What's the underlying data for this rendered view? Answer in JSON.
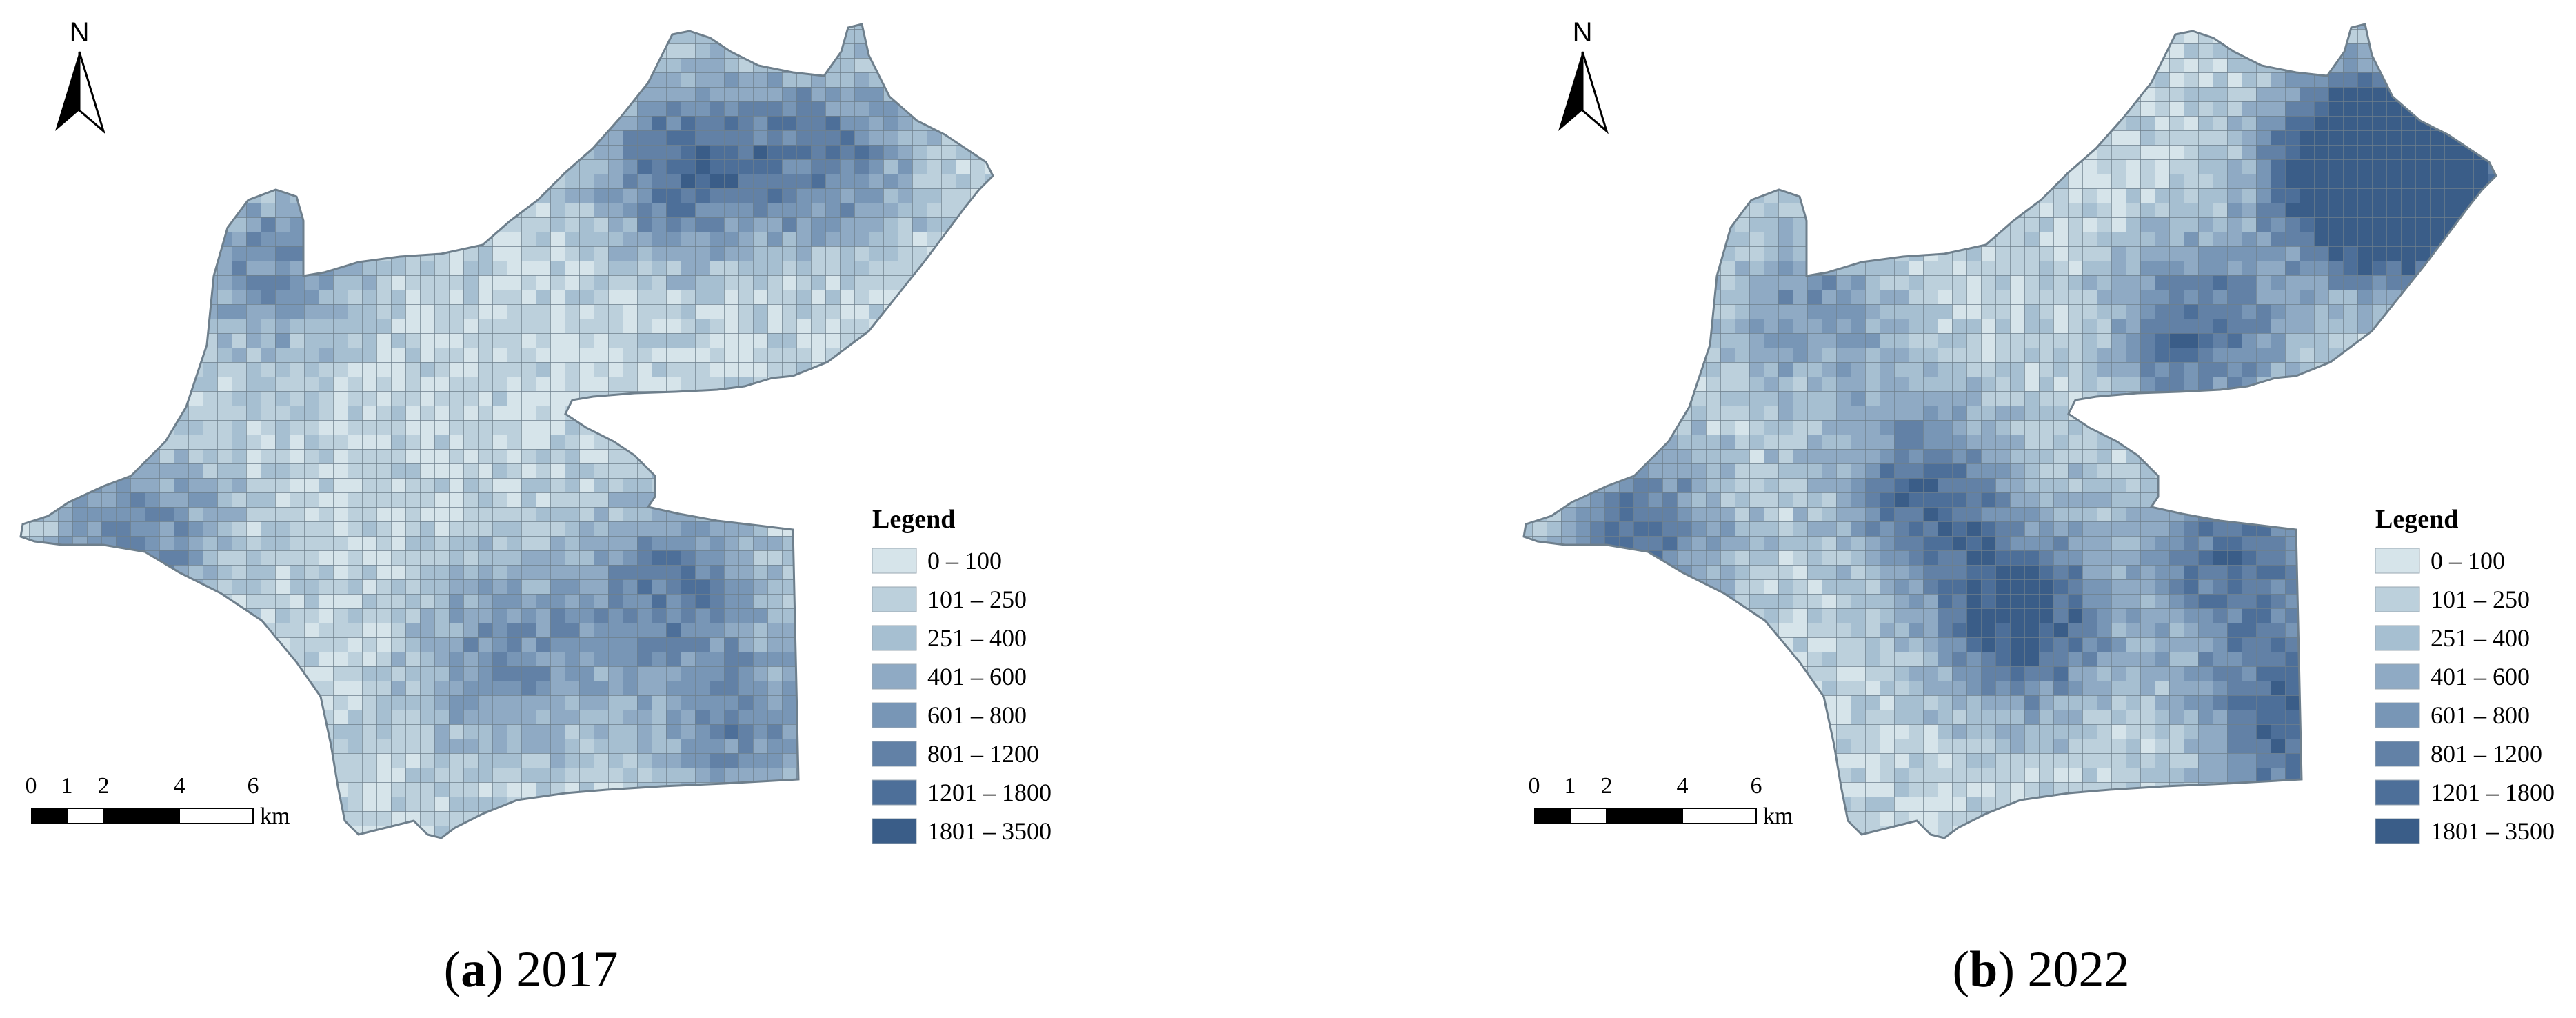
{
  "legend": {
    "title": "Legend",
    "classes": [
      {
        "label": "0 – 100",
        "color": "#d6e4ea"
      },
      {
        "label": "101 – 250",
        "color": "#bcd0dc"
      },
      {
        "label": "251 – 400",
        "color": "#a6bfd1"
      },
      {
        "label": "401 – 600",
        "color": "#8faac4"
      },
      {
        "label": "601 – 800",
        "color": "#7896b6"
      },
      {
        "label": "801 – 1200",
        "color": "#6281a6"
      },
      {
        "label": "1201 – 1800",
        "color": "#4d6f99"
      },
      {
        "label": "1801 – 3500",
        "color": "#3a5d88"
      }
    ]
  },
  "north_arrow": {
    "label": "N"
  },
  "scale_bar": {
    "ticks": [
      "0",
      "1",
      "2",
      "4",
      "6"
    ],
    "unit": "km"
  },
  "panels": [
    {
      "caption_letter": "a",
      "caption_year": "2017",
      "caption_open": "(",
      "caption_close": ")"
    },
    {
      "caption_letter": "b",
      "caption_year": "2022",
      "caption_open": "(",
      "caption_close": ")"
    }
  ],
  "colors": {
    "grid_line": "#6e7f8c",
    "outline": "#6e7f8c"
  }
}
